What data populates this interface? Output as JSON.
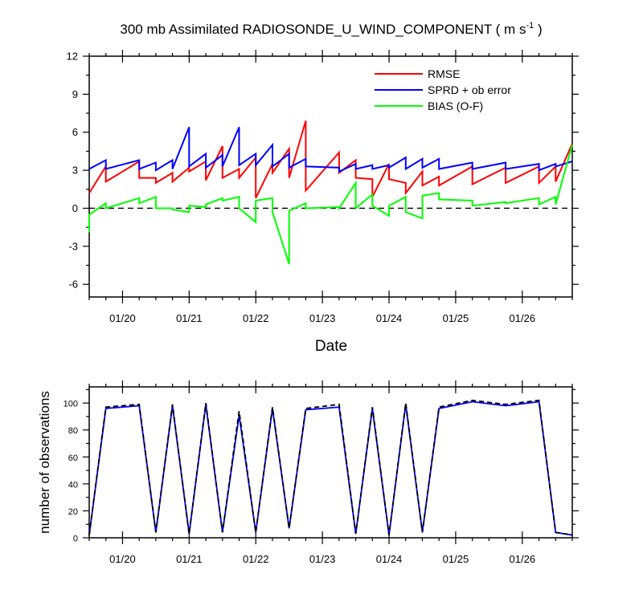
{
  "top_chart": {
    "title_prefix": "300 mb Assimilated RADIOSONDE_U_WIND_COMPONENT ( m s",
    "title_sup": "-1",
    "title_suffix": " )",
    "xlabel": "Date",
    "colors": {
      "rmse": "#ff0000",
      "sprd": "#0000ff",
      "bias": "#00ff00",
      "zero": "#000000"
    },
    "legend": {
      "placement": "top-right",
      "items": [
        "RMSE",
        "SPRD + ob error",
        "BIAS (O-F)"
      ]
    }
  },
  "bottom_chart": {
    "ylabel": "number of observations",
    "colors": {
      "solid": "#0000ff",
      "dashed": "#000000"
    }
  },
  "chart_data": [
    {
      "type": "line",
      "title": "300 mb Assimilated RADIOSONDE_U_WIND_COMPONENT ( m s-1 )",
      "xlabel": "Date",
      "ylabel": "",
      "xlim": [
        19.5,
        26.75
      ],
      "ylim": [
        -7,
        12
      ],
      "x_ticks": [
        {
          "v": 20,
          "label": "01/20"
        },
        {
          "v": 21,
          "label": "01/21"
        },
        {
          "v": 22,
          "label": "01/22"
        },
        {
          "v": 23,
          "label": "01/23"
        },
        {
          "v": 24,
          "label": "01/24"
        },
        {
          "v": 25,
          "label": "01/25"
        },
        {
          "v": 26,
          "label": "01/26"
        }
      ],
      "y_ticks": [
        12,
        9,
        6,
        3,
        0,
        -3,
        -6
      ],
      "grid": false,
      "legend_placement": "top-right",
      "reference_line": {
        "y": 0,
        "style": "dashed"
      },
      "series": [
        {
          "name": "RMSE",
          "x": [
            19.5,
            19.75,
            19.75,
            20.25,
            20.25,
            20.5,
            20.5,
            20.75,
            20.75,
            21.0,
            21.0,
            21.25,
            21.25,
            21.5,
            21.5,
            21.75,
            21.75,
            22.0,
            22.0,
            22.25,
            22.25,
            22.5,
            22.5,
            22.75,
            22.75,
            23.25,
            23.25,
            23.5,
            23.5,
            23.75,
            23.75,
            24.0,
            24.0,
            24.25,
            24.25,
            24.5,
            24.5,
            24.75,
            24.75,
            25.25,
            25.25,
            25.75,
            25.75,
            26.25,
            26.25,
            26.5,
            26.5,
            26.75
          ],
          "y": [
            1.2,
            3.3,
            2.1,
            3.7,
            2.4,
            2.4,
            2.0,
            2.8,
            2.1,
            3.2,
            2.9,
            3.7,
            2.2,
            4.9,
            2.4,
            3.1,
            2.4,
            4.0,
            0.8,
            3.5,
            2.8,
            4.7,
            2.4,
            6.9,
            1.4,
            4.4,
            2.8,
            3.8,
            2.4,
            2.3,
            0.9,
            3.5,
            2.3,
            2.0,
            1.2,
            2.9,
            1.8,
            2.5,
            1.8,
            3.3,
            1.9,
            3.2,
            2.0,
            3.3,
            2.0,
            3.3,
            2.1,
            5.1
          ]
        },
        {
          "name": "SPRD + ob error",
          "x": [
            19.5,
            19.75,
            19.75,
            20.25,
            20.25,
            20.5,
            20.5,
            20.75,
            20.75,
            21.0,
            21.0,
            21.25,
            21.25,
            21.5,
            21.5,
            21.75,
            21.75,
            22.0,
            22.0,
            22.25,
            22.25,
            22.5,
            22.5,
            22.75,
            22.75,
            23.25,
            23.25,
            23.5,
            23.5,
            23.75,
            23.75,
            24.0,
            24.0,
            24.25,
            24.25,
            24.5,
            24.5,
            24.75,
            24.75,
            25.25,
            25.25,
            25.75,
            25.75,
            26.25,
            26.25,
            26.5,
            26.5,
            26.75
          ],
          "y": [
            3.1,
            3.8,
            3.1,
            3.8,
            3.1,
            3.6,
            3.0,
            3.8,
            3.1,
            6.4,
            3.3,
            4.3,
            3.2,
            4.2,
            3.3,
            6.4,
            3.4,
            4.3,
            3.4,
            5.0,
            3.3,
            4.3,
            3.2,
            3.9,
            3.3,
            3.2,
            2.9,
            3.5,
            3.1,
            3.4,
            3.1,
            3.4,
            3.2,
            4.0,
            3.1,
            3.9,
            3.2,
            3.9,
            3.1,
            3.6,
            3.1,
            3.6,
            3.1,
            3.5,
            3.0,
            3.5,
            3.3,
            3.7
          ]
        },
        {
          "name": "BIAS (O-F)",
          "x": [
            19.5,
            19.5,
            19.75,
            19.75,
            20.25,
            20.25,
            20.5,
            20.5,
            20.75,
            20.75,
            21.0,
            21.0,
            21.25,
            21.25,
            21.5,
            21.5,
            21.75,
            21.75,
            22.0,
            22.0,
            22.25,
            22.25,
            22.5,
            22.5,
            22.75,
            22.75,
            23.25,
            23.25,
            23.5,
            23.5,
            23.75,
            23.75,
            24.0,
            24.0,
            24.25,
            24.25,
            24.5,
            24.5,
            24.75,
            24.75,
            25.25,
            25.25,
            25.75,
            25.75,
            26.25,
            26.25,
            26.5,
            26.5,
            26.75
          ],
          "y": [
            -1.9,
            -0.5,
            0.4,
            0.0,
            0.8,
            0.4,
            0.9,
            0.0,
            0.0,
            -0.1,
            -0.3,
            0.2,
            0.1,
            0.3,
            0.8,
            0.6,
            0.9,
            0.0,
            -1.1,
            0.6,
            0.8,
            -0.3,
            -4.4,
            -0.2,
            0.4,
            0.0,
            0.1,
            0.0,
            2.0,
            0.0,
            1.1,
            0.2,
            -0.6,
            0.2,
            0.9,
            -0.3,
            -0.8,
            1.0,
            1.2,
            0.7,
            0.6,
            0.2,
            0.5,
            0.4,
            0.8,
            0.3,
            0.9,
            0.3,
            5.0
          ]
        }
      ]
    },
    {
      "type": "line",
      "title": "",
      "xlabel": "",
      "ylabel": "number of observations",
      "xlim": [
        19.5,
        26.75
      ],
      "ylim": [
        0,
        112
      ],
      "x_ticks": [
        {
          "v": 20,
          "label": "01/20"
        },
        {
          "v": 21,
          "label": "01/21"
        },
        {
          "v": 22,
          "label": "01/22"
        },
        {
          "v": 23,
          "label": "01/23"
        },
        {
          "v": 24,
          "label": "01/24"
        },
        {
          "v": 25,
          "label": "01/25"
        },
        {
          "v": 26,
          "label": "01/26"
        }
      ],
      "y_ticks": [
        0,
        20,
        40,
        60,
        80,
        100
      ],
      "grid": false,
      "series": [
        {
          "style": "solid",
          "x": [
            19.5,
            19.75,
            20.25,
            20.5,
            20.75,
            21.0,
            21.25,
            21.5,
            21.75,
            22.0,
            22.25,
            22.5,
            22.75,
            23.25,
            23.5,
            23.75,
            24.0,
            24.25,
            24.5,
            24.75,
            25.25,
            25.75,
            26.25,
            26.5,
            26.75
          ],
          "y": [
            2,
            96,
            98,
            4,
            98,
            3,
            99,
            4,
            91,
            4,
            96,
            7,
            95,
            97,
            3,
            96,
            2,
            99,
            4,
            96,
            101,
            98,
            101,
            4,
            2
          ]
        },
        {
          "style": "dashed",
          "x": [
            19.5,
            19.75,
            20.25,
            20.5,
            20.75,
            21.0,
            21.25,
            21.5,
            21.75,
            22.0,
            22.25,
            22.5,
            22.75,
            23.25,
            23.5,
            23.75,
            24.0,
            24.25,
            24.5,
            24.75,
            25.25,
            25.75,
            26.25,
            26.5,
            26.75
          ],
          "y": [
            2,
            97,
            99,
            4,
            99,
            3,
            100,
            4,
            94,
            4,
            97,
            7,
            96,
            99,
            3,
            97,
            2,
            100,
            4,
            97,
            102,
            99,
            102,
            4,
            2
          ]
        }
      ]
    }
  ]
}
